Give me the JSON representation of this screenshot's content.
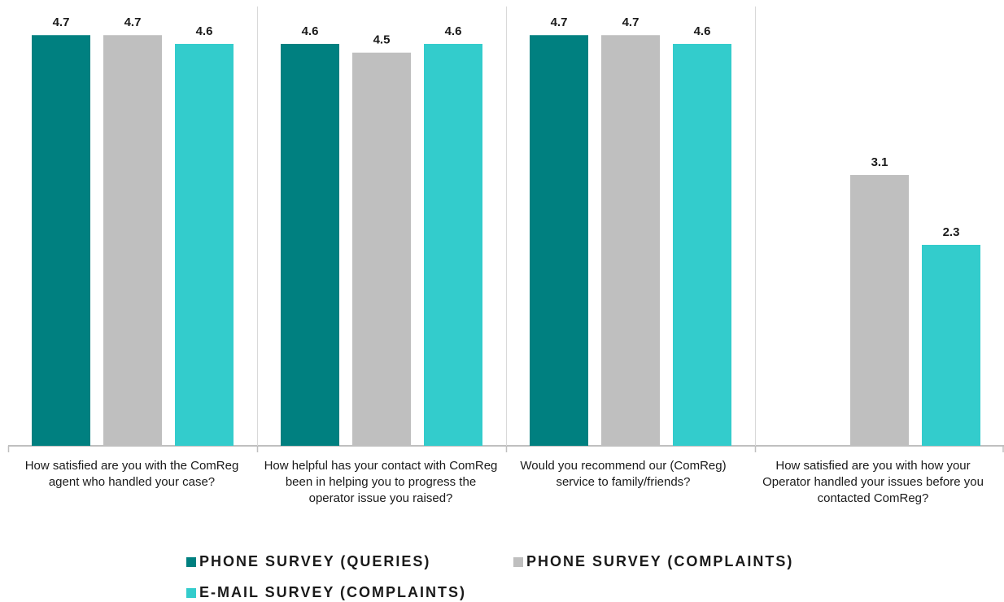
{
  "chart_data": {
    "type": "bar",
    "categories": [
      "How satisfied are you with the ComReg agent who handled your case?",
      "How helpful has your contact with ComReg been in helping you to progress the operator issue you raised?",
      "Would you recommend our (ComReg) service to family/friends?",
      "How satisfied are you with how your Operator handled your issues before you contacted ComReg?"
    ],
    "series": [
      {
        "name": "PHONE SURVEY (QUERIES)",
        "color": "#008080",
        "values": [
          4.7,
          4.6,
          4.7,
          null
        ],
        "labels": [
          "4.7",
          "4.6",
          "4.7",
          ""
        ]
      },
      {
        "name": "PHONE SURVEY (COMPLAINTS)",
        "color": "#bfbfbf",
        "values": [
          4.7,
          4.5,
          4.7,
          3.1
        ],
        "labels": [
          "4.7",
          "4.5",
          "4.7",
          "3.1"
        ]
      },
      {
        "name": "E-MAIL SURVEY (COMPLAINTS)",
        "color": "#33cccc",
        "values": [
          4.6,
          4.6,
          4.6,
          2.3
        ],
        "labels": [
          "4.6",
          "4.6",
          "4.6",
          "2.3"
        ]
      }
    ],
    "ylim": [
      0,
      5
    ],
    "grid": false,
    "legend_position": "bottom"
  }
}
